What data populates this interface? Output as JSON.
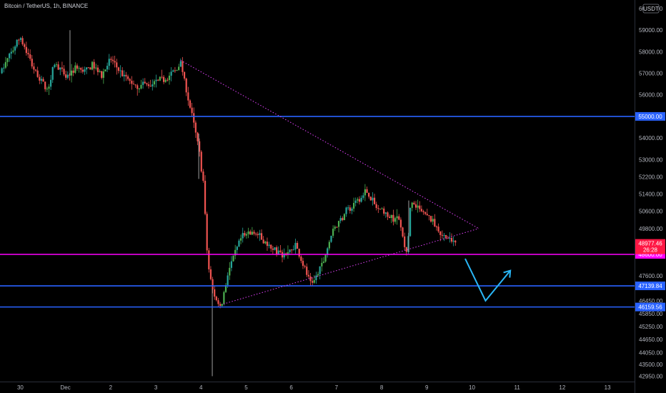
{
  "chart_data": {
    "type": "candlestick",
    "title": "Bitcoin / TetherUS, 1h, BINANCE",
    "currency_label": "USDT",
    "y_range": [
      42700,
      60400
    ],
    "x_range": [
      -0.45,
      13.6
    ],
    "y_ticks": [
      60000,
      59000,
      58000,
      57000,
      56000,
      54000,
      53000,
      52200,
      51400,
      50600,
      49800,
      47600,
      46450,
      45850,
      45250,
      44650,
      44050,
      43500,
      42950
    ],
    "y_tick_labels": [
      "60000.00",
      "59000.00",
      "58000.00",
      "57000.00",
      "56000.00",
      "54000.00",
      "53000.00",
      "52200.00",
      "51400.00",
      "50600.00",
      "49800.00",
      "47600.00",
      "46450.00",
      "45850.00",
      "45250.00",
      "44650.00",
      "44050.00",
      "43500.00",
      "42950.00"
    ],
    "x_ticks": [
      0,
      1,
      2,
      3,
      4,
      5,
      6,
      7,
      8,
      9,
      10,
      11,
      12,
      13
    ],
    "x_tick_labels": [
      "30",
      "Dec",
      "2",
      "3",
      "4",
      "5",
      "6",
      "7",
      "8",
      "9",
      "10",
      "11",
      "12",
      "13"
    ],
    "price_series": {
      "t": [
        -0.45,
        0.0,
        0.3,
        0.6,
        0.75,
        1.0,
        1.2,
        1.5,
        1.6,
        1.8,
        2.0,
        2.3,
        2.6,
        2.9,
        3.3,
        3.55,
        3.8,
        3.95,
        4.05,
        4.1,
        4.15,
        4.25,
        4.35,
        4.45,
        4.6,
        4.9,
        5.2,
        5.5,
        5.8,
        6.1,
        6.3,
        6.45,
        6.7,
        6.9,
        7.2,
        7.4,
        7.65,
        7.9,
        8.2,
        8.4,
        8.55,
        8.65,
        8.9,
        9.1,
        9.3,
        9.5,
        9.65
      ],
      "p": [
        57000,
        58700,
        57200,
        56200,
        57500,
        56800,
        57200,
        57100,
        57400,
        56900,
        57700,
        56800,
        56400,
        56500,
        56800,
        57500,
        55000,
        53500,
        52000,
        50000,
        48200,
        47000,
        46400,
        46200,
        47800,
        49400,
        49600,
        49000,
        48600,
        49000,
        47900,
        47100,
        48200,
        49600,
        50600,
        50900,
        51600,
        50700,
        50300,
        50200,
        48600,
        51000,
        50500,
        50200,
        49600,
        49200,
        49000
      ]
    },
    "wicks": [
      {
        "t": 4.25,
        "high": 47000,
        "low": 42950
      },
      {
        "t": 3.95,
        "high": 54200,
        "low": 52100
      },
      {
        "t": 1.1,
        "high": 59000,
        "low": 56900
      },
      {
        "t": 8.6,
        "high": 51100,
        "low": 48700
      }
    ],
    "horizontal_levels": [
      {
        "price": 55000,
        "label": "55000.00",
        "color": "#2962ff"
      },
      {
        "price": 48600,
        "label": "48600.00",
        "color": "#ff00ff"
      },
      {
        "price": 47139.84,
        "label": "47139.84",
        "color": "#2962ff"
      },
      {
        "price": 46159.56,
        "label": "46159.56",
        "color": "#2962ff"
      }
    ],
    "current_price": {
      "price": 48977.46,
      "label": "48977.46",
      "countdown": "26:28",
      "color": "#ff1744"
    },
    "trendlines": [
      {
        "name": "upper",
        "from": [
          3.55,
          57600
        ],
        "to": [
          10.15,
          49800
        ],
        "color": "#e040fb"
      },
      {
        "name": "lower",
        "from": [
          4.5,
          46300
        ],
        "to": [
          10.15,
          49800
        ],
        "color": "#e040fb"
      }
    ],
    "projection": {
      "points": [
        [
          9.85,
          48400
        ],
        [
          10.3,
          46450
        ],
        [
          10.85,
          47850
        ]
      ],
      "color": "#29b6f6"
    },
    "colors": {
      "up": "#26a69a",
      "up_bright": "#4caf50",
      "down": "#ef5350",
      "background": "#000000"
    }
  }
}
